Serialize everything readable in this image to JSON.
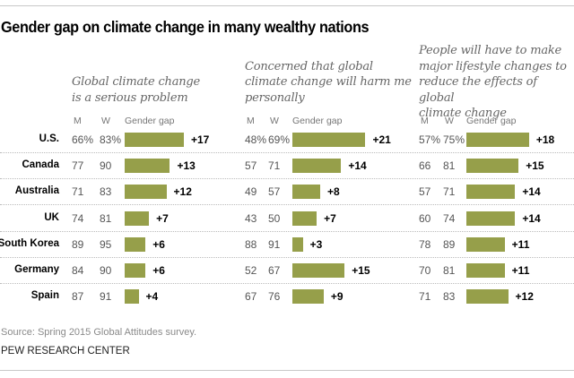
{
  "chart_data": {
    "type": "bar",
    "title": "Gender gap on climate change in many wealthy nations",
    "categories": [
      "U.S.",
      "Canada",
      "Australia",
      "UK",
      "South Korea",
      "Germany",
      "Spain"
    ],
    "column_labels": {
      "men": "M",
      "women": "W",
      "gap": "Gender gap"
    },
    "panels": [
      {
        "title": "Global climate change is a serious problem",
        "title_lines": [
          "Global climate change",
          "is a serious problem"
        ],
        "men": [
          66,
          77,
          71,
          74,
          89,
          84,
          87
        ],
        "women": [
          83,
          90,
          83,
          81,
          95,
          90,
          91
        ],
        "gap": [
          17,
          13,
          12,
          7,
          6,
          6,
          4
        ],
        "first_row_suffix": "%"
      },
      {
        "title": "Concerned that global climate change will harm me personally",
        "title_lines": [
          "Concerned that global",
          "climate change will harm me",
          "personally"
        ],
        "men": [
          48,
          57,
          49,
          43,
          88,
          52,
          67
        ],
        "women": [
          69,
          71,
          57,
          50,
          91,
          67,
          76
        ],
        "gap": [
          21,
          14,
          8,
          7,
          3,
          15,
          9
        ],
        "first_row_suffix": "%"
      },
      {
        "title": "People will have to make major lifestyle changes to reduce the effects of global climate change",
        "title_lines": [
          "People will have to make",
          "major lifestyle changes to",
          "reduce the effects of global",
          "climate change"
        ],
        "men": [
          57,
          66,
          57,
          60,
          78,
          70,
          71
        ],
        "women": [
          75,
          81,
          71,
          74,
          89,
          81,
          83
        ],
        "gap": [
          18,
          15,
          14,
          14,
          11,
          11,
          12
        ],
        "first_row_suffix": "%"
      }
    ],
    "units": "percent",
    "bar_color": "#969f4a",
    "source": "Source: Spring 2015 Global Attitudes survey.",
    "credit": "PEW RESEARCH CENTER"
  }
}
